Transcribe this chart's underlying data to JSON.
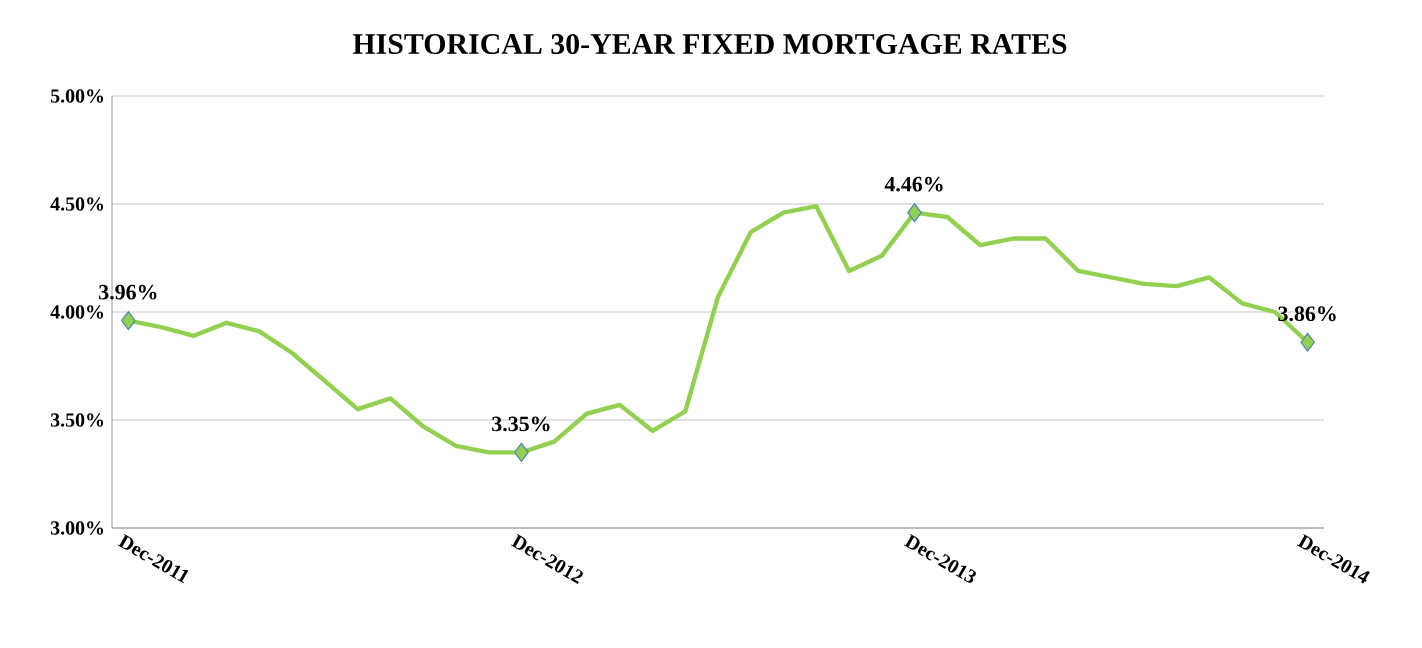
{
  "chart_data": {
    "type": "line",
    "title": "HISTORICAL 30-YEAR FIXED MORTGAGE RATES",
    "categories": [
      "Dec-2011",
      null,
      null,
      null,
      null,
      null,
      null,
      null,
      null,
      null,
      null,
      null,
      "Dec-2012",
      null,
      null,
      null,
      null,
      null,
      null,
      null,
      null,
      null,
      null,
      null,
      "Dec-2013",
      null,
      null,
      null,
      null,
      null,
      null,
      null,
      null,
      null,
      null,
      null,
      "Dec-2014"
    ],
    "series": [
      {
        "color": "#92d050",
        "values": [
          3.96,
          3.93,
          3.89,
          3.95,
          3.91,
          3.81,
          3.68,
          3.55,
          3.6,
          3.47,
          3.38,
          3.35,
          3.35,
          3.4,
          3.53,
          3.57,
          3.45,
          3.54,
          4.07,
          4.37,
          4.46,
          4.49,
          4.19,
          4.26,
          4.46,
          4.44,
          4.31,
          4.34,
          4.34,
          4.19,
          4.16,
          4.13,
          4.12,
          4.16,
          4.04,
          4.0,
          3.86
        ],
        "value_labels": [
          "3.96%",
          null,
          null,
          null,
          null,
          null,
          null,
          null,
          null,
          null,
          null,
          null,
          "3.35%",
          null,
          null,
          null,
          null,
          null,
          null,
          null,
          null,
          null,
          null,
          null,
          "4.46%",
          null,
          null,
          null,
          null,
          null,
          null,
          null,
          null,
          null,
          null,
          null,
          "3.86%"
        ]
      }
    ],
    "ylim": [
      3,
      5
    ],
    "yticks": [
      {
        "value": 3,
        "label": "3.00%"
      },
      {
        "value": 3.5,
        "label": "3.50%"
      },
      {
        "value": 4,
        "label": "4.00%"
      },
      {
        "value": 4.5,
        "label": "4.50%"
      },
      {
        "value": 5,
        "label": "5.00%"
      }
    ],
    "grid": "y",
    "line_style": "solid"
  }
}
